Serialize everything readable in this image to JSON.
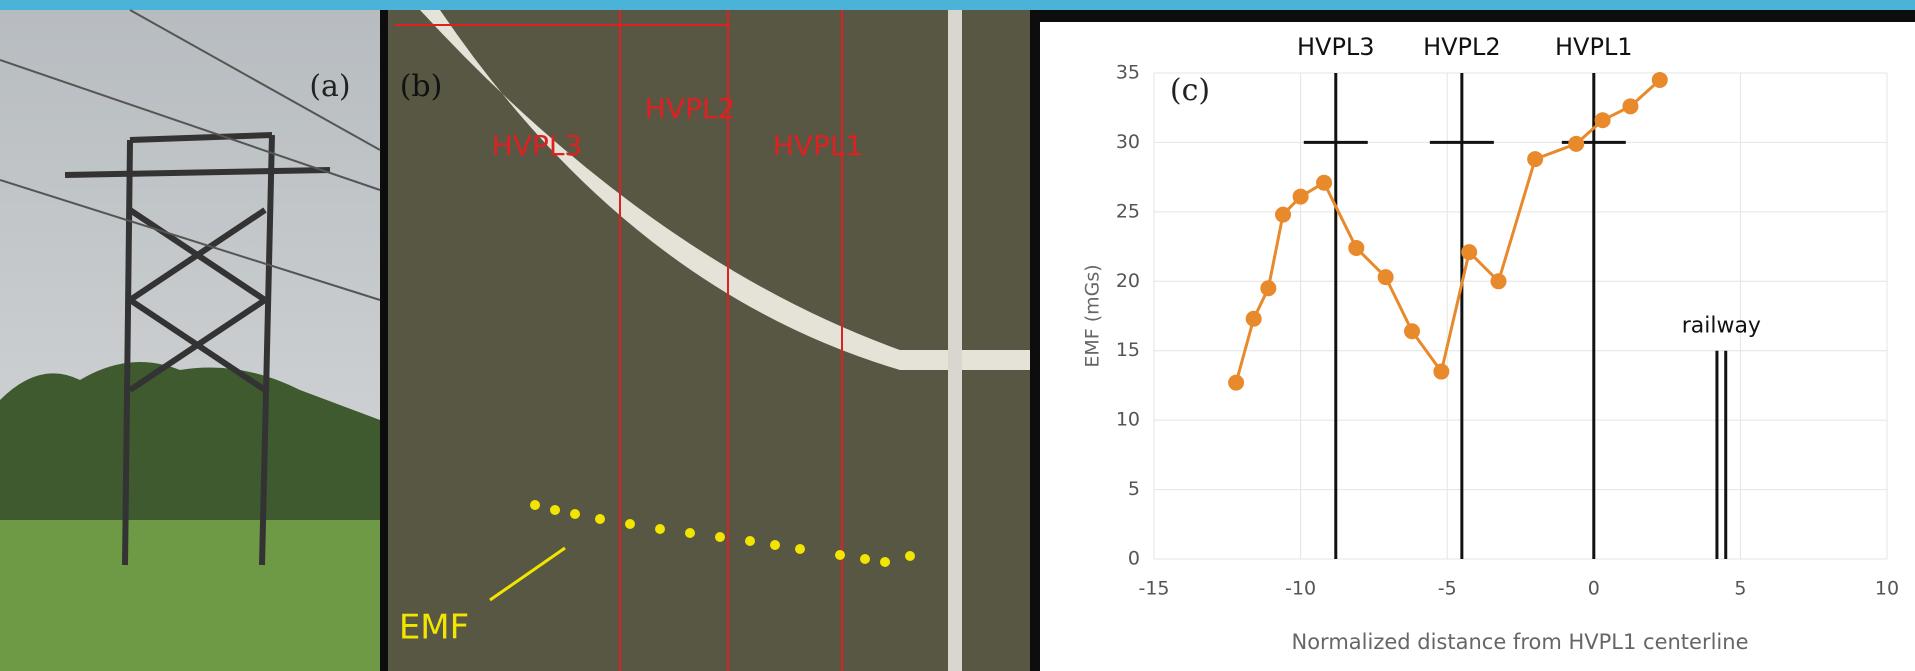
{
  "panel_labels": [
    "(a)",
    "(b)",
    "(c)"
  ],
  "map_labels": [
    "HVPL3",
    "HVPL2",
    "HVPL1",
    "EMF"
  ],
  "chart_data": {
    "type": "line",
    "x_label": "Normalized distance from HVPL1 centerline",
    "y_label": "EMF (mGs)",
    "series": [
      {
        "name": "EMF",
        "color": "#e8892b",
        "x": [
          -12.2,
          -11.6,
          -11.1,
          -10.6,
          -10.0,
          -9.2,
          -8.1,
          -7.1,
          -6.2,
          -5.2,
          -4.25,
          -3.25,
          -2.0,
          -0.6,
          0.3,
          1.25,
          2.25
        ],
        "values": [
          12.7,
          17.3,
          19.5,
          24.8,
          26.1,
          27.1,
          22.4,
          20.3,
          16.4,
          13.5,
          22.1,
          20.0,
          28.8,
          29.9,
          31.6,
          32.6,
          34.5
        ]
      }
    ],
    "markers": [
      {
        "label": "HVPL3",
        "x": -8.8,
        "crossbar_y": 30
      },
      {
        "label": "HVPL2",
        "x": -4.5,
        "crossbar_y": 30
      },
      {
        "label": "HVPL1",
        "x": 0,
        "crossbar_y": 30
      }
    ],
    "railway": {
      "label": "railway",
      "x": [
        4.2,
        4.5
      ],
      "height": 15
    },
    "xlim": [
      -15,
      10
    ],
    "xticks": [
      -15,
      -10,
      -5,
      0,
      5,
      10
    ],
    "ylim": [
      0,
      35
    ],
    "yticks": [
      0,
      5,
      10,
      15,
      20,
      25,
      30,
      35
    ],
    "grid": true
  }
}
